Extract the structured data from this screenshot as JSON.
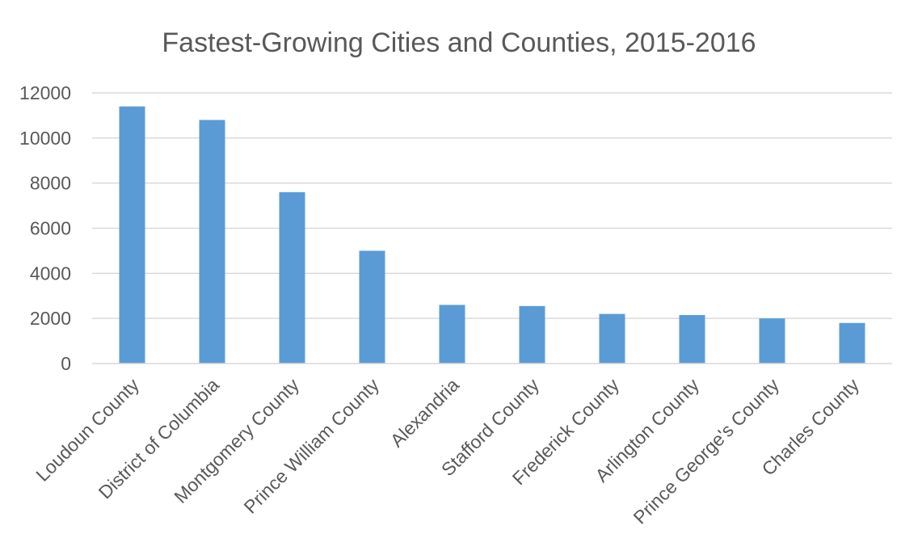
{
  "chart_data": {
    "type": "bar",
    "title": "Fastest-Growing Cities and Counties, 2015-2016",
    "xlabel": "",
    "ylabel": "",
    "categories": [
      "Loudoun County",
      "District of Columbia",
      "Montgomery County",
      "Prince William County",
      "Alexandria",
      "Stafford County",
      "Frederick County",
      "Arlington County",
      "Prince George's County",
      "Charles County"
    ],
    "values": [
      11400,
      10800,
      7600,
      5000,
      2600,
      2550,
      2200,
      2150,
      2000,
      1800
    ],
    "ylim": [
      0,
      12000
    ],
    "yticks": [
      "0",
      "2000",
      "4000",
      "6000",
      "8000",
      "10000",
      "12000"
    ],
    "grid": true,
    "legend": "none",
    "bar_color": "#5b9bd5"
  }
}
